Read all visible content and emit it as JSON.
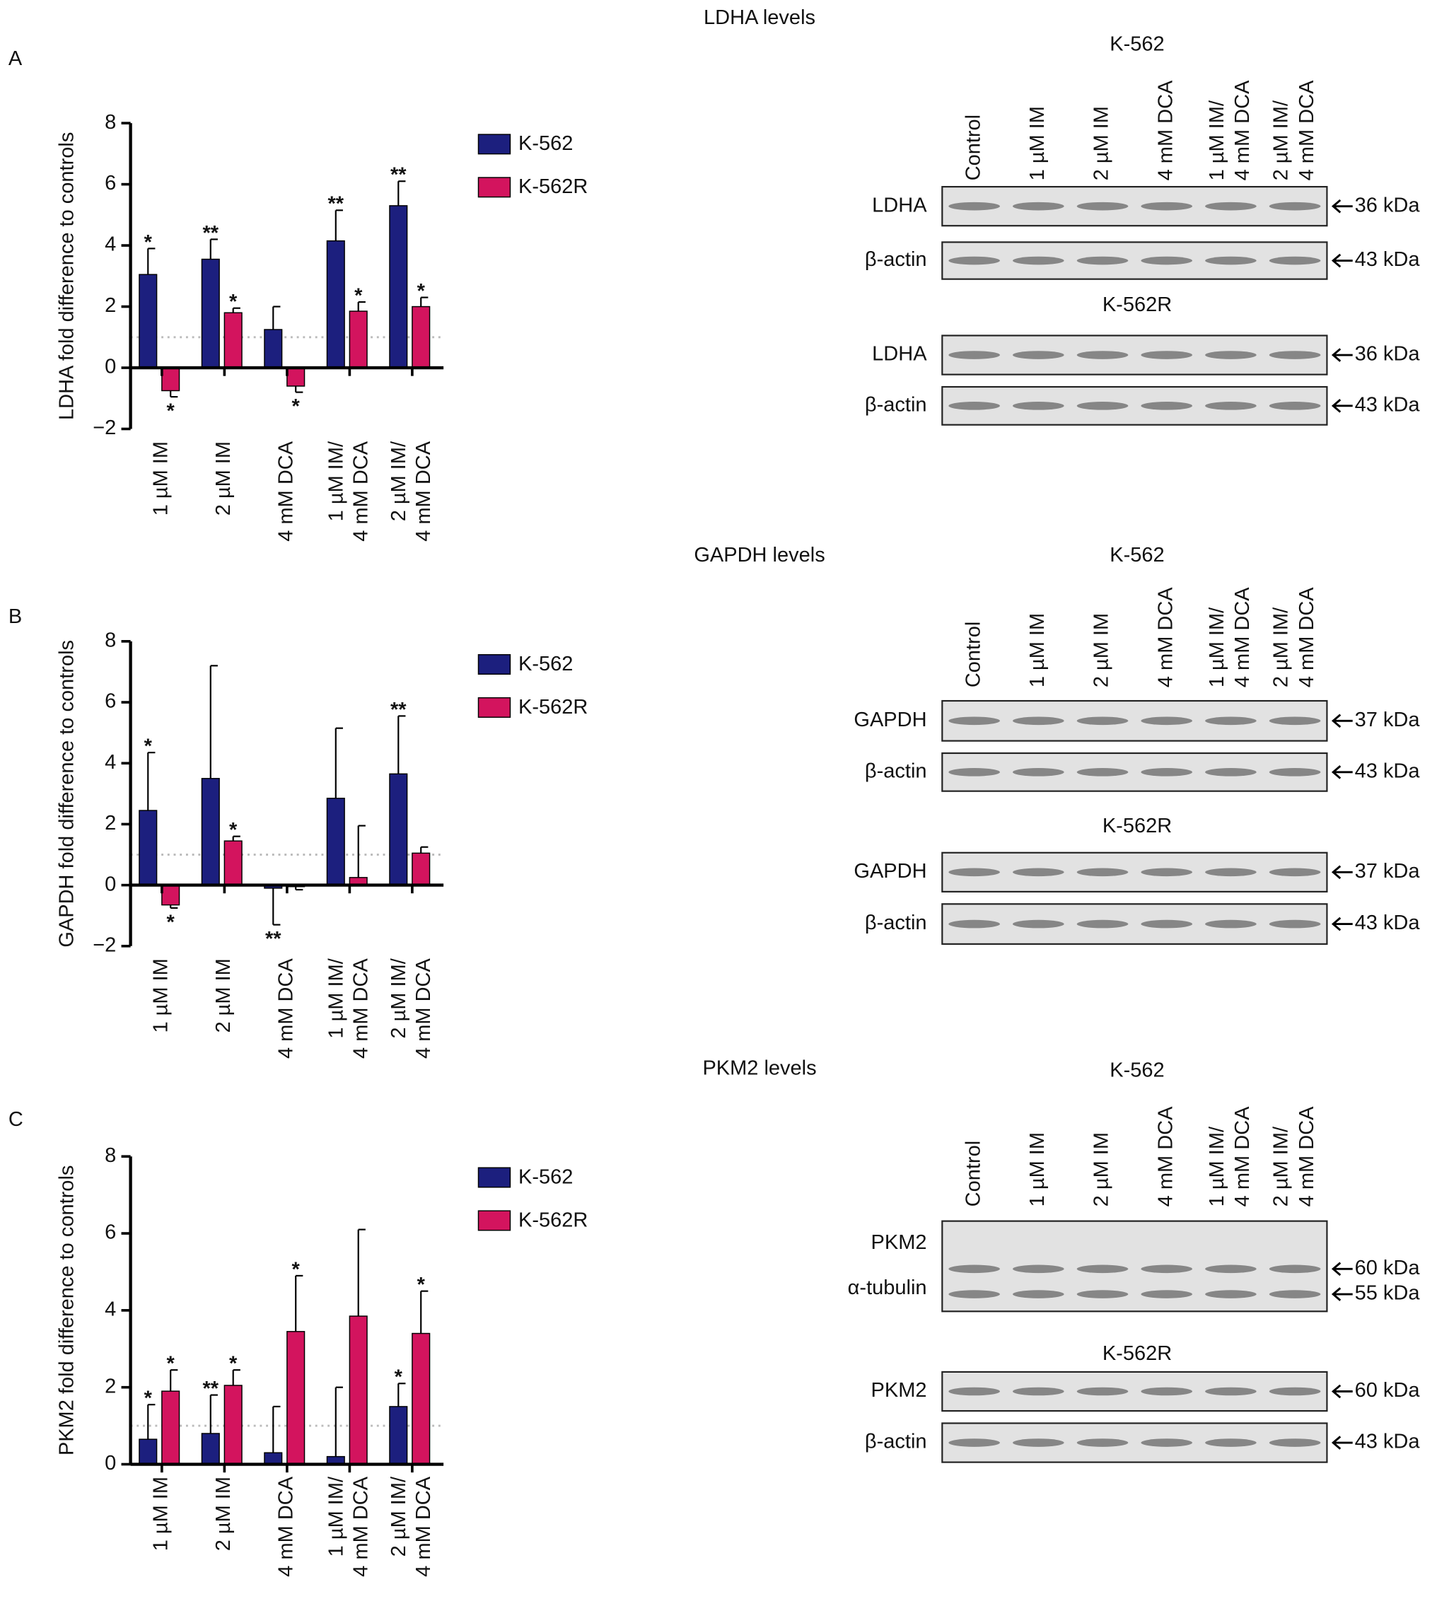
{
  "chart_data": [
    {
      "type": "bar",
      "panel_label": "A",
      "ylabel": "LDHA fold difference to controls",
      "categories": [
        [
          "1 µM IM"
        ],
        [
          "2 µM IM"
        ],
        [
          "4 mM DCA"
        ],
        [
          "1 µM IM/",
          "4 mM DCA"
        ],
        [
          "2 µM IM/",
          "4 mM DCA"
        ]
      ],
      "series": [
        {
          "name": "K-562",
          "color": "#1c1f7e",
          "values": [
            3.05,
            3.55,
            1.25,
            4.15,
            5.3
          ],
          "errors": [
            0.85,
            0.65,
            0.75,
            1.0,
            0.8
          ],
          "significance": [
            "*",
            "**",
            null,
            "**",
            "**"
          ]
        },
        {
          "name": "K-562R",
          "color": "#d3145e",
          "values": [
            -0.75,
            1.8,
            -0.6,
            1.85,
            2.0
          ],
          "errors": [
            0.2,
            0.15,
            0.2,
            0.3,
            0.3
          ],
          "significance": [
            "*",
            "*",
            "*",
            "*",
            "*"
          ]
        }
      ],
      "ylim": [
        -2,
        8
      ],
      "yticks": [
        {
          "value": -2,
          "label": "−2"
        },
        0,
        2,
        4,
        6,
        8
      ],
      "reference_line": 1
    },
    {
      "type": "bar",
      "panel_label": "B",
      "ylabel": "GAPDH fold difference to controls",
      "categories": [
        [
          "1 µM IM"
        ],
        [
          "2 µM IM"
        ],
        [
          "4 mM DCA"
        ],
        [
          "1 µM IM/",
          "4 mM DCA"
        ],
        [
          "2 µM IM/",
          "4 mM DCA"
        ]
      ],
      "series": [
        {
          "name": "K-562",
          "color": "#1c1f7e",
          "values": [
            2.45,
            3.5,
            -0.1,
            2.85,
            3.65
          ],
          "errors": [
            1.9,
            3.7,
            1.2,
            2.3,
            1.9
          ],
          "significance": [
            "*",
            null,
            "**",
            null,
            "**"
          ]
        },
        {
          "name": "K-562R",
          "color": "#d3145e",
          "values": [
            -0.65,
            1.45,
            -0.05,
            0.25,
            1.05
          ],
          "errors": [
            0.1,
            0.15,
            0.1,
            1.7,
            0.2
          ],
          "significance": [
            "*",
            "*",
            null,
            null,
            null
          ]
        }
      ],
      "ylim": [
        -2,
        8
      ],
      "yticks": [
        {
          "value": -2,
          "label": "−2"
        },
        0,
        2,
        4,
        6,
        8
      ],
      "reference_line": 1
    },
    {
      "type": "bar",
      "panel_label": "C",
      "ylabel": "PKM2 fold difference to controls",
      "categories": [
        [
          "1 µM IM"
        ],
        [
          "2 µM IM"
        ],
        [
          "4 mM DCA"
        ],
        [
          "1 µM IM/",
          "4 mM DCA"
        ],
        [
          "2 µM IM/",
          "4 mM DCA"
        ]
      ],
      "series": [
        {
          "name": "K-562",
          "color": "#1c1f7e",
          "values": [
            0.65,
            0.8,
            0.3,
            0.2,
            1.5
          ],
          "errors": [
            0.9,
            1.0,
            1.2,
            1.8,
            0.6
          ],
          "significance": [
            "*",
            "**",
            null,
            null,
            "*"
          ]
        },
        {
          "name": "K-562R",
          "color": "#d3145e",
          "values": [
            1.9,
            2.05,
            3.45,
            3.85,
            3.4
          ],
          "errors": [
            0.55,
            0.4,
            1.45,
            2.25,
            1.1
          ],
          "significance": [
            "*",
            "*",
            "*",
            null,
            "*"
          ]
        }
      ],
      "ylim": [
        0,
        8
      ],
      "yticks": [
        0,
        2,
        4,
        6,
        8
      ],
      "reference_line": 1
    }
  ],
  "blots": [
    {
      "title": "LDHA levels",
      "lanes": [
        [
          "Control"
        ],
        [
          "1 µM IM"
        ],
        [
          "2 µM IM"
        ],
        [
          "4 mM DCA"
        ],
        [
          "1 µM IM/",
          "4 mM DCA"
        ],
        [
          "2 µM IM/",
          "4 mM DCA"
        ]
      ],
      "groups": [
        {
          "cell_line": "K-562",
          "color": "#2b2f9c",
          "membranes": [
            {
              "rows": [
                {
                  "protein": "LDHA",
                  "size": "36 kDa"
                }
              ]
            },
            {
              "rows": [
                {
                  "protein": "β-actin",
                  "size": "43 kDa"
                }
              ]
            }
          ]
        },
        {
          "cell_line": "K-562R",
          "color": "#d81b73",
          "membranes": [
            {
              "rows": [
                {
                  "protein": "LDHA",
                  "size": "36 kDa"
                }
              ]
            },
            {
              "rows": [
                {
                  "protein": "β-actin",
                  "size": "43 kDa"
                }
              ]
            }
          ]
        }
      ]
    },
    {
      "title": "GAPDH levels",
      "lanes": [
        [
          "Control"
        ],
        [
          "1 µM IM"
        ],
        [
          "2 µM IM"
        ],
        [
          "4 mM DCA"
        ],
        [
          "1 µM IM/",
          "4 mM DCA"
        ],
        [
          "2 µM IM/",
          "4 mM DCA"
        ]
      ],
      "groups": [
        {
          "cell_line": "K-562",
          "color": "#2b2f9c",
          "membranes": [
            {
              "rows": [
                {
                  "protein": "GAPDH",
                  "size": "37 kDa"
                }
              ]
            },
            {
              "rows": [
                {
                  "protein": "β-actin",
                  "size": "43 kDa"
                }
              ]
            }
          ]
        },
        {
          "cell_line": "K-562R",
          "color": "#d81b73",
          "membranes": [
            {
              "rows": [
                {
                  "protein": "GAPDH",
                  "size": "37 kDa"
                }
              ]
            },
            {
              "rows": [
                {
                  "protein": "β-actin",
                  "size": "43 kDa"
                }
              ]
            }
          ]
        }
      ]
    },
    {
      "title": "PKM2 levels",
      "lanes": [
        [
          "Control"
        ],
        [
          "1 µM IM"
        ],
        [
          "2 µM IM"
        ],
        [
          "4 mM DCA"
        ],
        [
          "1 µM IM/",
          "4 mM DCA"
        ],
        [
          "2 µM IM/",
          "4 mM DCA"
        ]
      ],
      "groups": [
        {
          "cell_line": "K-562",
          "color": "#2b2f9c",
          "membranes": [
            {
              "rows": [
                {
                  "protein": "PKM2",
                  "size": "60 kDa"
                },
                {
                  "protein": "α-tubulin",
                  "size": "55 kDa"
                }
              ]
            }
          ]
        },
        {
          "cell_line": "K-562R",
          "color": "#d81b73",
          "membranes": [
            {
              "rows": [
                {
                  "protein": "PKM2",
                  "size": "60 kDa"
                }
              ]
            },
            {
              "rows": [
                {
                  "protein": "β-actin",
                  "size": "43 kDa"
                }
              ]
            }
          ]
        }
      ]
    }
  ]
}
